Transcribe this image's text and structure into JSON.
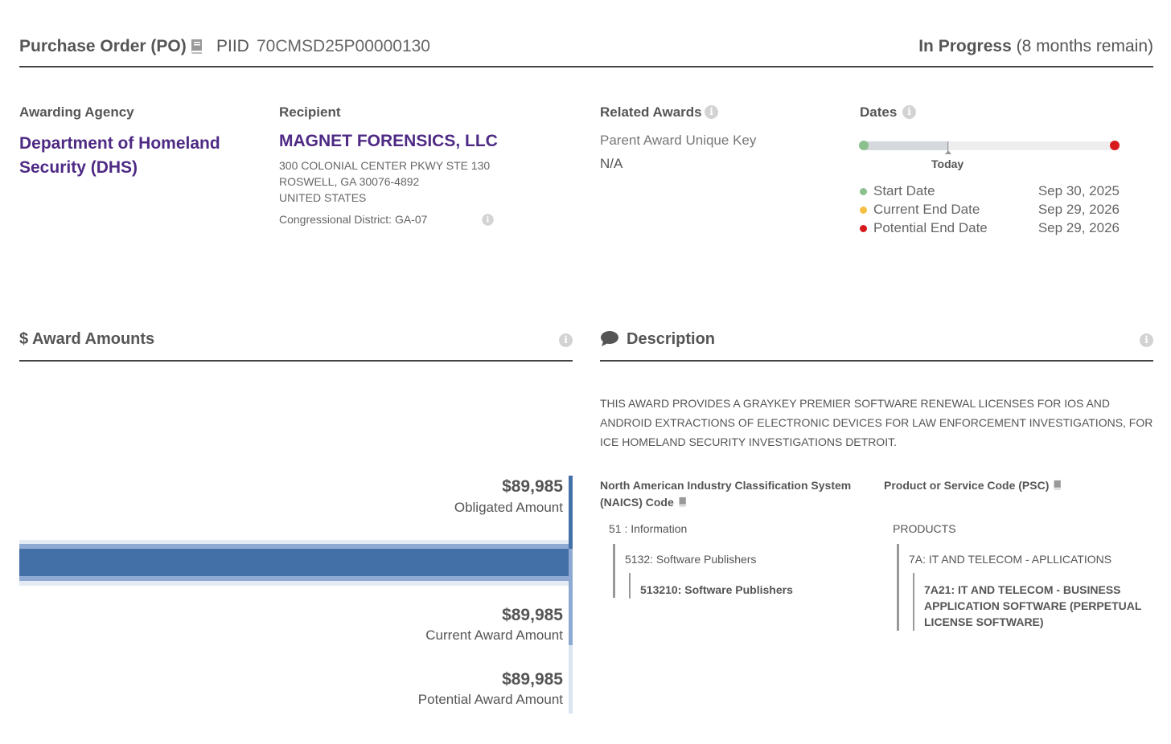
{
  "header": {
    "title": "Purchase Order (PO)",
    "piid_label": "PIID",
    "piid_value": "70CMSD25P00000130",
    "status": "In Progress",
    "status_detail": "(8 months remain)"
  },
  "agency": {
    "label": "Awarding Agency",
    "name": "Department of Homeland Security (DHS)"
  },
  "recipient": {
    "label": "Recipient",
    "name": "MAGNET FORENSICS, LLC",
    "address_line1": "300 COLONIAL CENTER PKWY STE 130",
    "address_line2": "ROSWELL, GA 30076-4892",
    "address_line3": "UNITED STATES",
    "congressional_district": "Congressional District: GA-07"
  },
  "related_awards": {
    "label": "Related Awards",
    "parent_key_label": "Parent Award Unique Key",
    "parent_key_value": "N/A"
  },
  "dates": {
    "label": "Dates",
    "today_label": "Today",
    "elapsed_fraction": 0.34,
    "rows": [
      {
        "label": "Start Date",
        "value": "Sep 30, 2025",
        "color": "#8bc18e"
      },
      {
        "label": "Current End Date",
        "value": "Sep 29, 2026",
        "color": "#f5c142"
      },
      {
        "label": "Potential End Date",
        "value": "Sep 29, 2026",
        "color": "#d7191c"
      }
    ]
  },
  "award_amounts": {
    "title": "$ Award Amounts",
    "items": [
      {
        "value": "$89,985",
        "label": "Obligated Amount",
        "color": "#4470a8"
      },
      {
        "value": "$89,985",
        "label": "Current Award Amount",
        "color": "#8eaad2"
      },
      {
        "value": "$89,985",
        "label": "Potential Award Amount",
        "color": "#dbe4f1"
      }
    ]
  },
  "description": {
    "title": "Description",
    "text": "THIS AWARD PROVIDES A GRAYKEY PREMIER SOFTWARE RENEWAL LICENSES FOR IOS AND ANDROID EXTRACTIONS OF ELECTRONIC DEVICES FOR LAW ENFORCEMENT INVESTIGATIONS, FOR ICE HOMELAND SECURITY INVESTIGATIONS DETROIT."
  },
  "naics": {
    "title": "North American Industry Classification System (NAICS)  Code",
    "level1": "51 : Information",
    "level2": "5132: Software Publishers",
    "level3": "513210: Software Publishers"
  },
  "psc": {
    "title": "Product or Service Code  (PSC)",
    "level1": "PRODUCTS",
    "level2": "7A: IT AND TELECOM - APLLICATIONS",
    "level3": "7A21: IT AND TELECOM - BUSINESS APPLICATION SOFTWARE (PERPETUAL LICENSE SOFTWARE)"
  },
  "colors": {
    "accent_purple": "#4e2a84",
    "bar_obligated": "#4470a8",
    "bar_current": "#8eaad2",
    "bar_potential": "#dbe4f1"
  }
}
